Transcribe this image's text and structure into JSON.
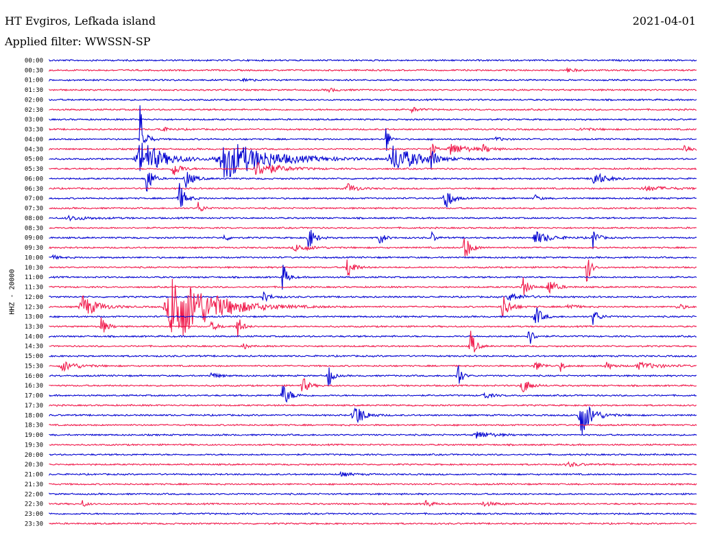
{
  "header": {
    "station": "HT Evgiros, Lefkada island",
    "date": "2021-04-01",
    "filter": "Applied filter: WWSSN-SP"
  },
  "chart_data": {
    "type": "line",
    "title": "HT Evgiros, Lefkada island",
    "subtitle": "Applied filter: WWSSN-SP",
    "ylabel": "HHZ - 20000",
    "xlabel": "",
    "colors": {
      "even_rows": "#0000d0",
      "odd_rows": "#f0184a",
      "grid": "none"
    },
    "rows": [
      "00:00",
      "00:30",
      "01:00",
      "01:30",
      "02:00",
      "02:30",
      "03:00",
      "03:30",
      "04:00",
      "04:30",
      "05:00",
      "05:30",
      "06:00",
      "06:30",
      "07:00",
      "07:30",
      "08:00",
      "08:30",
      "09:00",
      "09:30",
      "10:00",
      "10:30",
      "11:00",
      "11:30",
      "12:00",
      "12:30",
      "13:00",
      "13:30",
      "14:00",
      "14:30",
      "15:00",
      "15:30",
      "16:00",
      "16:30",
      "17:00",
      "17:30",
      "18:00",
      "18:30",
      "19:00",
      "19:30",
      "20:00",
      "20:30",
      "21:00",
      "21:30",
      "22:00",
      "22:30",
      "23:00",
      "23:30"
    ],
    "events": [
      {
        "row": 1,
        "x": 0.8,
        "amp": 3,
        "w": 0.012
      },
      {
        "row": 2,
        "x": 0.3,
        "amp": 3,
        "w": 0.01
      },
      {
        "row": 3,
        "x": 0.43,
        "amp": 3,
        "w": 0.012
      },
      {
        "row": 5,
        "x": 0.56,
        "amp": 4,
        "w": 0.01
      },
      {
        "row": 7,
        "x": 0.17,
        "amp": 4,
        "w": 0.012
      },
      {
        "row": 7,
        "x": 0.82,
        "amp": 2,
        "w": 0.02
      },
      {
        "row": 8,
        "x": 0.14,
        "amp": 55,
        "w": 0.006
      },
      {
        "row": 8,
        "x": 0.52,
        "amp": 25,
        "w": 0.004
      },
      {
        "row": 8,
        "x": 0.69,
        "amp": 3,
        "w": 0.01
      },
      {
        "row": 9,
        "x": 0.62,
        "amp": 10,
        "w": 0.02
      },
      {
        "row": 9,
        "x": 0.59,
        "amp": 20,
        "w": 0.004
      },
      {
        "row": 9,
        "x": 0.67,
        "amp": 6,
        "w": 0.01
      },
      {
        "row": 9,
        "x": 0.98,
        "amp": 8,
        "w": 0.01
      },
      {
        "row": 10,
        "x": 0.14,
        "amp": 30,
        "w": 0.03
      },
      {
        "row": 10,
        "x": 0.27,
        "amp": 30,
        "w": 0.06
      },
      {
        "row": 10,
        "x": 0.53,
        "amp": 20,
        "w": 0.035
      },
      {
        "row": 10,
        "x": 0.59,
        "amp": 25,
        "w": 0.004
      },
      {
        "row": 11,
        "x": 0.19,
        "amp": 14,
        "w": 0.01
      },
      {
        "row": 11,
        "x": 0.32,
        "amp": 12,
        "w": 0.03
      },
      {
        "row": 12,
        "x": 0.15,
        "amp": 35,
        "w": 0.006
      },
      {
        "row": 12,
        "x": 0.21,
        "amp": 15,
        "w": 0.01
      },
      {
        "row": 12,
        "x": 0.84,
        "amp": 12,
        "w": 0.015
      },
      {
        "row": 13,
        "x": 0.46,
        "amp": 8,
        "w": 0.012
      },
      {
        "row": 13,
        "x": 0.92,
        "amp": 4,
        "w": 0.03
      },
      {
        "row": 14,
        "x": 0.2,
        "amp": 25,
        "w": 0.008
      },
      {
        "row": 14,
        "x": 0.61,
        "amp": 25,
        "w": 0.008
      },
      {
        "row": 14,
        "x": 0.75,
        "amp": 6,
        "w": 0.006
      },
      {
        "row": 15,
        "x": 0.23,
        "amp": 10,
        "w": 0.006
      },
      {
        "row": 16,
        "x": 0.03,
        "amp": 3,
        "w": 0.03
      },
      {
        "row": 18,
        "x": 0.27,
        "amp": 6,
        "w": 0.006
      },
      {
        "row": 18,
        "x": 0.4,
        "amp": 20,
        "w": 0.008
      },
      {
        "row": 18,
        "x": 0.51,
        "amp": 14,
        "w": 0.006
      },
      {
        "row": 18,
        "x": 0.59,
        "amp": 10,
        "w": 0.005
      },
      {
        "row": 18,
        "x": 0.75,
        "amp": 10,
        "w": 0.02
      },
      {
        "row": 18,
        "x": 0.84,
        "amp": 18,
        "w": 0.006
      },
      {
        "row": 19,
        "x": 0.38,
        "amp": 6,
        "w": 0.02
      },
      {
        "row": 19,
        "x": 0.64,
        "amp": 25,
        "w": 0.008
      },
      {
        "row": 20,
        "x": 0.005,
        "amp": 3,
        "w": 0.01
      },
      {
        "row": 21,
        "x": 0.46,
        "amp": 20,
        "w": 0.008
      },
      {
        "row": 21,
        "x": 0.83,
        "amp": 30,
        "w": 0.005
      },
      {
        "row": 22,
        "x": 0.36,
        "amp": 25,
        "w": 0.006
      },
      {
        "row": 23,
        "x": 0.73,
        "amp": 18,
        "w": 0.008
      },
      {
        "row": 23,
        "x": 0.77,
        "amp": 14,
        "w": 0.01
      },
      {
        "row": 24,
        "x": 0.33,
        "amp": 8,
        "w": 0.01
      },
      {
        "row": 24,
        "x": 0.71,
        "amp": 6,
        "w": 0.02
      },
      {
        "row": 25,
        "x": 0.05,
        "amp": 18,
        "w": 0.02
      },
      {
        "row": 25,
        "x": 0.19,
        "amp": 60,
        "w": 0.05
      },
      {
        "row": 25,
        "x": 0.7,
        "amp": 20,
        "w": 0.01
      },
      {
        "row": 25,
        "x": 0.8,
        "amp": 6,
        "w": 0.01
      },
      {
        "row": 25,
        "x": 0.97,
        "amp": 5,
        "w": 0.01
      },
      {
        "row": 26,
        "x": 0.75,
        "amp": 20,
        "w": 0.008
      },
      {
        "row": 26,
        "x": 0.84,
        "amp": 12,
        "w": 0.008
      },
      {
        "row": 27,
        "x": 0.08,
        "amp": 14,
        "w": 0.008
      },
      {
        "row": 27,
        "x": 0.25,
        "amp": 6,
        "w": 0.01
      },
      {
        "row": 27,
        "x": 0.29,
        "amp": 20,
        "w": 0.006
      },
      {
        "row": 28,
        "x": 0.74,
        "amp": 18,
        "w": 0.006
      },
      {
        "row": 29,
        "x": 0.3,
        "amp": 6,
        "w": 0.005
      },
      {
        "row": 29,
        "x": 0.65,
        "amp": 30,
        "w": 0.006
      },
      {
        "row": 31,
        "x": 0.02,
        "amp": 8,
        "w": 0.02
      },
      {
        "row": 31,
        "x": 0.75,
        "amp": 8,
        "w": 0.01
      },
      {
        "row": 31,
        "x": 0.79,
        "amp": 8,
        "w": 0.005
      },
      {
        "row": 31,
        "x": 0.86,
        "amp": 6,
        "w": 0.01
      },
      {
        "row": 31,
        "x": 0.91,
        "amp": 5,
        "w": 0.03
      },
      {
        "row": 32,
        "x": 0.25,
        "amp": 5,
        "w": 0.01
      },
      {
        "row": 32,
        "x": 0.43,
        "amp": 25,
        "w": 0.005
      },
      {
        "row": 32,
        "x": 0.63,
        "amp": 30,
        "w": 0.005
      },
      {
        "row": 33,
        "x": 0.39,
        "amp": 15,
        "w": 0.008
      },
      {
        "row": 33,
        "x": 0.73,
        "amp": 14,
        "w": 0.01
      },
      {
        "row": 34,
        "x": 0.36,
        "amp": 18,
        "w": 0.01
      },
      {
        "row": 34,
        "x": 0.67,
        "amp": 6,
        "w": 0.01
      },
      {
        "row": 36,
        "x": 0.47,
        "amp": 22,
        "w": 0.012
      },
      {
        "row": 36,
        "x": 0.82,
        "amp": 35,
        "w": 0.015
      },
      {
        "row": 38,
        "x": 0.66,
        "amp": 6,
        "w": 0.02
      },
      {
        "row": 41,
        "x": 0.8,
        "amp": 4,
        "w": 0.015
      },
      {
        "row": 42,
        "x": 0.45,
        "amp": 3,
        "w": 0.015
      },
      {
        "row": 45,
        "x": 0.05,
        "amp": 6,
        "w": 0.006
      },
      {
        "row": 45,
        "x": 0.58,
        "amp": 7,
        "w": 0.008
      },
      {
        "row": 45,
        "x": 0.67,
        "amp": 3,
        "w": 0.02
      }
    ]
  }
}
